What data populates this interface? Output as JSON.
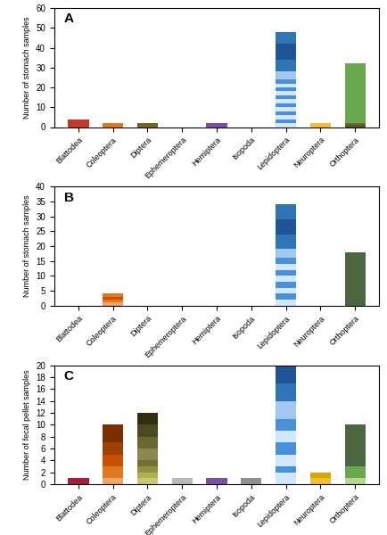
{
  "chart_data": [
    {
      "type": "bar",
      "stacked": true,
      "categories": [
        "Blattodea",
        "Coleoptera",
        "Diptera",
        "Ephemeroptera",
        "Hemiptera",
        "Isopoda",
        "Lepidoptera",
        "Neuroptera",
        "Orthoptera"
      ],
      "ylabel": "Number of stomach samples",
      "ylim": [
        0,
        60
      ],
      "yticks": [
        0,
        10,
        20,
        30,
        40,
        50,
        60
      ],
      "annotations": [
        "A"
      ],
      "stacks": [
        [
          {
            "value": 4,
            "color": "#c0392b"
          }
        ],
        [
          {
            "value": 2,
            "color": "#e07820"
          }
        ],
        [
          {
            "value": 2,
            "color": "#7a6520"
          }
        ],
        [],
        [
          {
            "value": 2,
            "color": "#7b4fa6"
          }
        ],
        [],
        [
          {
            "value": 2,
            "color": "#d0e8ff"
          },
          {
            "value": 2,
            "color": "#4a90d9"
          },
          {
            "value": 2,
            "color": "#d0e8ff"
          },
          {
            "value": 2,
            "color": "#4a90d9"
          },
          {
            "value": 2,
            "color": "#d0e8ff"
          },
          {
            "value": 2,
            "color": "#4a90d9"
          },
          {
            "value": 2,
            "color": "#d0e8ff"
          },
          {
            "value": 2,
            "color": "#4a90d9"
          },
          {
            "value": 2,
            "color": "#d0e8ff"
          },
          {
            "value": 2,
            "color": "#4a90d9"
          },
          {
            "value": 2,
            "color": "#d0e8ff"
          },
          {
            "value": 2,
            "color": "#4a90d9"
          },
          {
            "value": 4,
            "color": "#a0c8f0"
          },
          {
            "value": 6,
            "color": "#2e75b6"
          },
          {
            "value": 8,
            "color": "#1f5496"
          },
          {
            "value": 6,
            "color": "#2e75b6"
          }
        ],
        [
          {
            "value": 2,
            "color": "#f0c030"
          }
        ],
        [
          {
            "value": 1,
            "color": "#4a5e28"
          },
          {
            "value": 1,
            "color": "#7a6520"
          },
          {
            "value": 30,
            "color": "#6aa84f"
          }
        ]
      ]
    },
    {
      "type": "bar",
      "stacked": true,
      "categories": [
        "Blattodea",
        "Coleoptera",
        "Diptera",
        "Ephemeroptera",
        "Hemiptera",
        "Isopoda",
        "Lepidoptera",
        "Neuroptera",
        "Orthoptera"
      ],
      "ylabel": "Number of stomach samples",
      "ylim": [
        0,
        40
      ],
      "yticks": [
        0,
        5,
        10,
        15,
        20,
        25,
        30,
        35,
        40
      ],
      "annotations": [
        "B"
      ],
      "stacks": [
        [],
        [
          {
            "value": 1,
            "color": "#f4a460"
          },
          {
            "value": 1,
            "color": "#e07820"
          },
          {
            "value": 1,
            "color": "#c85000"
          },
          {
            "value": 1,
            "color": "#e07820"
          }
        ],
        [],
        [],
        [],
        [],
        [
          {
            "value": 2,
            "color": "#d0e8ff"
          },
          {
            "value": 2,
            "color": "#4a90d9"
          },
          {
            "value": 2,
            "color": "#d0e8ff"
          },
          {
            "value": 2,
            "color": "#4a90d9"
          },
          {
            "value": 2,
            "color": "#d0e8ff"
          },
          {
            "value": 2,
            "color": "#4a90d9"
          },
          {
            "value": 2,
            "color": "#d0e8ff"
          },
          {
            "value": 2,
            "color": "#4a90d9"
          },
          {
            "value": 3,
            "color": "#a0c8f0"
          },
          {
            "value": 5,
            "color": "#2e75b6"
          },
          {
            "value": 5,
            "color": "#1f5496"
          },
          {
            "value": 5,
            "color": "#2e75b6"
          }
        ],
        [],
        [
          {
            "value": 18,
            "color": "#4a6741"
          }
        ]
      ]
    },
    {
      "type": "bar",
      "stacked": true,
      "categories": [
        "Blattodea",
        "Coleoptera",
        "Diptera",
        "Ephemeroptera",
        "Hemiptera",
        "Isopoda",
        "Lepidoptera",
        "Neuroptera",
        "Orthoptera"
      ],
      "ylabel": "Number of fecal pellet samples",
      "ylim": [
        0,
        20
      ],
      "yticks": [
        0,
        2,
        4,
        6,
        8,
        10,
        12,
        14,
        16,
        18,
        20
      ],
      "annotations": [
        "C"
      ],
      "stacks": [
        [
          {
            "value": 1,
            "color": "#9b2335"
          }
        ],
        [
          {
            "value": 1,
            "color": "#f4a460"
          },
          {
            "value": 2,
            "color": "#e07820"
          },
          {
            "value": 2,
            "color": "#c85000"
          },
          {
            "value": 2,
            "color": "#a04000"
          },
          {
            "value": 3,
            "color": "#7a3000"
          }
        ],
        [
          {
            "value": 1,
            "color": "#c8c870"
          },
          {
            "value": 1,
            "color": "#b0b050"
          },
          {
            "value": 1,
            "color": "#909040"
          },
          {
            "value": 1,
            "color": "#707030"
          },
          {
            "value": 2,
            "color": "#888850"
          },
          {
            "value": 2,
            "color": "#686830"
          },
          {
            "value": 2,
            "color": "#4a4a20"
          },
          {
            "value": 2,
            "color": "#303010"
          }
        ],
        [
          {
            "value": 1,
            "color": "#b8b8b8"
          }
        ],
        [
          {
            "value": 1,
            "color": "#7b4fa6"
          }
        ],
        [
          {
            "value": 1,
            "color": "#909090"
          }
        ],
        [
          {
            "value": 2,
            "color": "#d0e8ff"
          },
          {
            "value": 1,
            "color": "#4a90d9"
          },
          {
            "value": 2,
            "color": "#d0e8ff"
          },
          {
            "value": 2,
            "color": "#4a90d9"
          },
          {
            "value": 2,
            "color": "#d0e8ff"
          },
          {
            "value": 2,
            "color": "#4a90d9"
          },
          {
            "value": 3,
            "color": "#a0c8f0"
          },
          {
            "value": 3,
            "color": "#2e75b6"
          },
          {
            "value": 3,
            "color": "#1f5496"
          }
        ],
        [
          {
            "value": 1,
            "color": "#f0c030"
          },
          {
            "value": 1,
            "color": "#d4a800"
          }
        ],
        [
          {
            "value": 1,
            "color": "#b8d890"
          },
          {
            "value": 2,
            "color": "#6aa84f"
          },
          {
            "value": 7,
            "color": "#4a6741"
          }
        ]
      ]
    }
  ]
}
